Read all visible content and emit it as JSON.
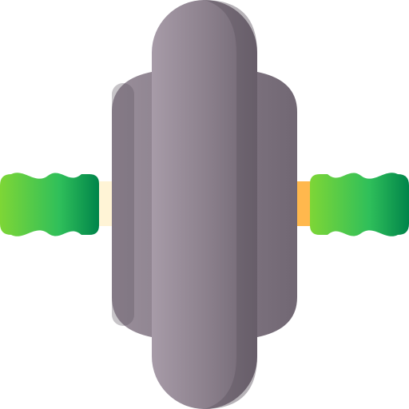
{
  "icon": {
    "name": "ab-roller-wheel-icon",
    "colors": {
      "wheel_light": "#a79ba8",
      "wheel_mid": "#8a7f8b",
      "wheel_dark": "#6e6470",
      "wheel_shadow": "#5f5661",
      "hub_light": "#9a8f9b",
      "hub_dark": "#716773",
      "axle_left": "#fff4d6",
      "axle_right": "#ffb84d",
      "grip_light": "#7ed636",
      "grip_mid": "#2fbf5a",
      "grip_dark": "#00844a"
    }
  }
}
